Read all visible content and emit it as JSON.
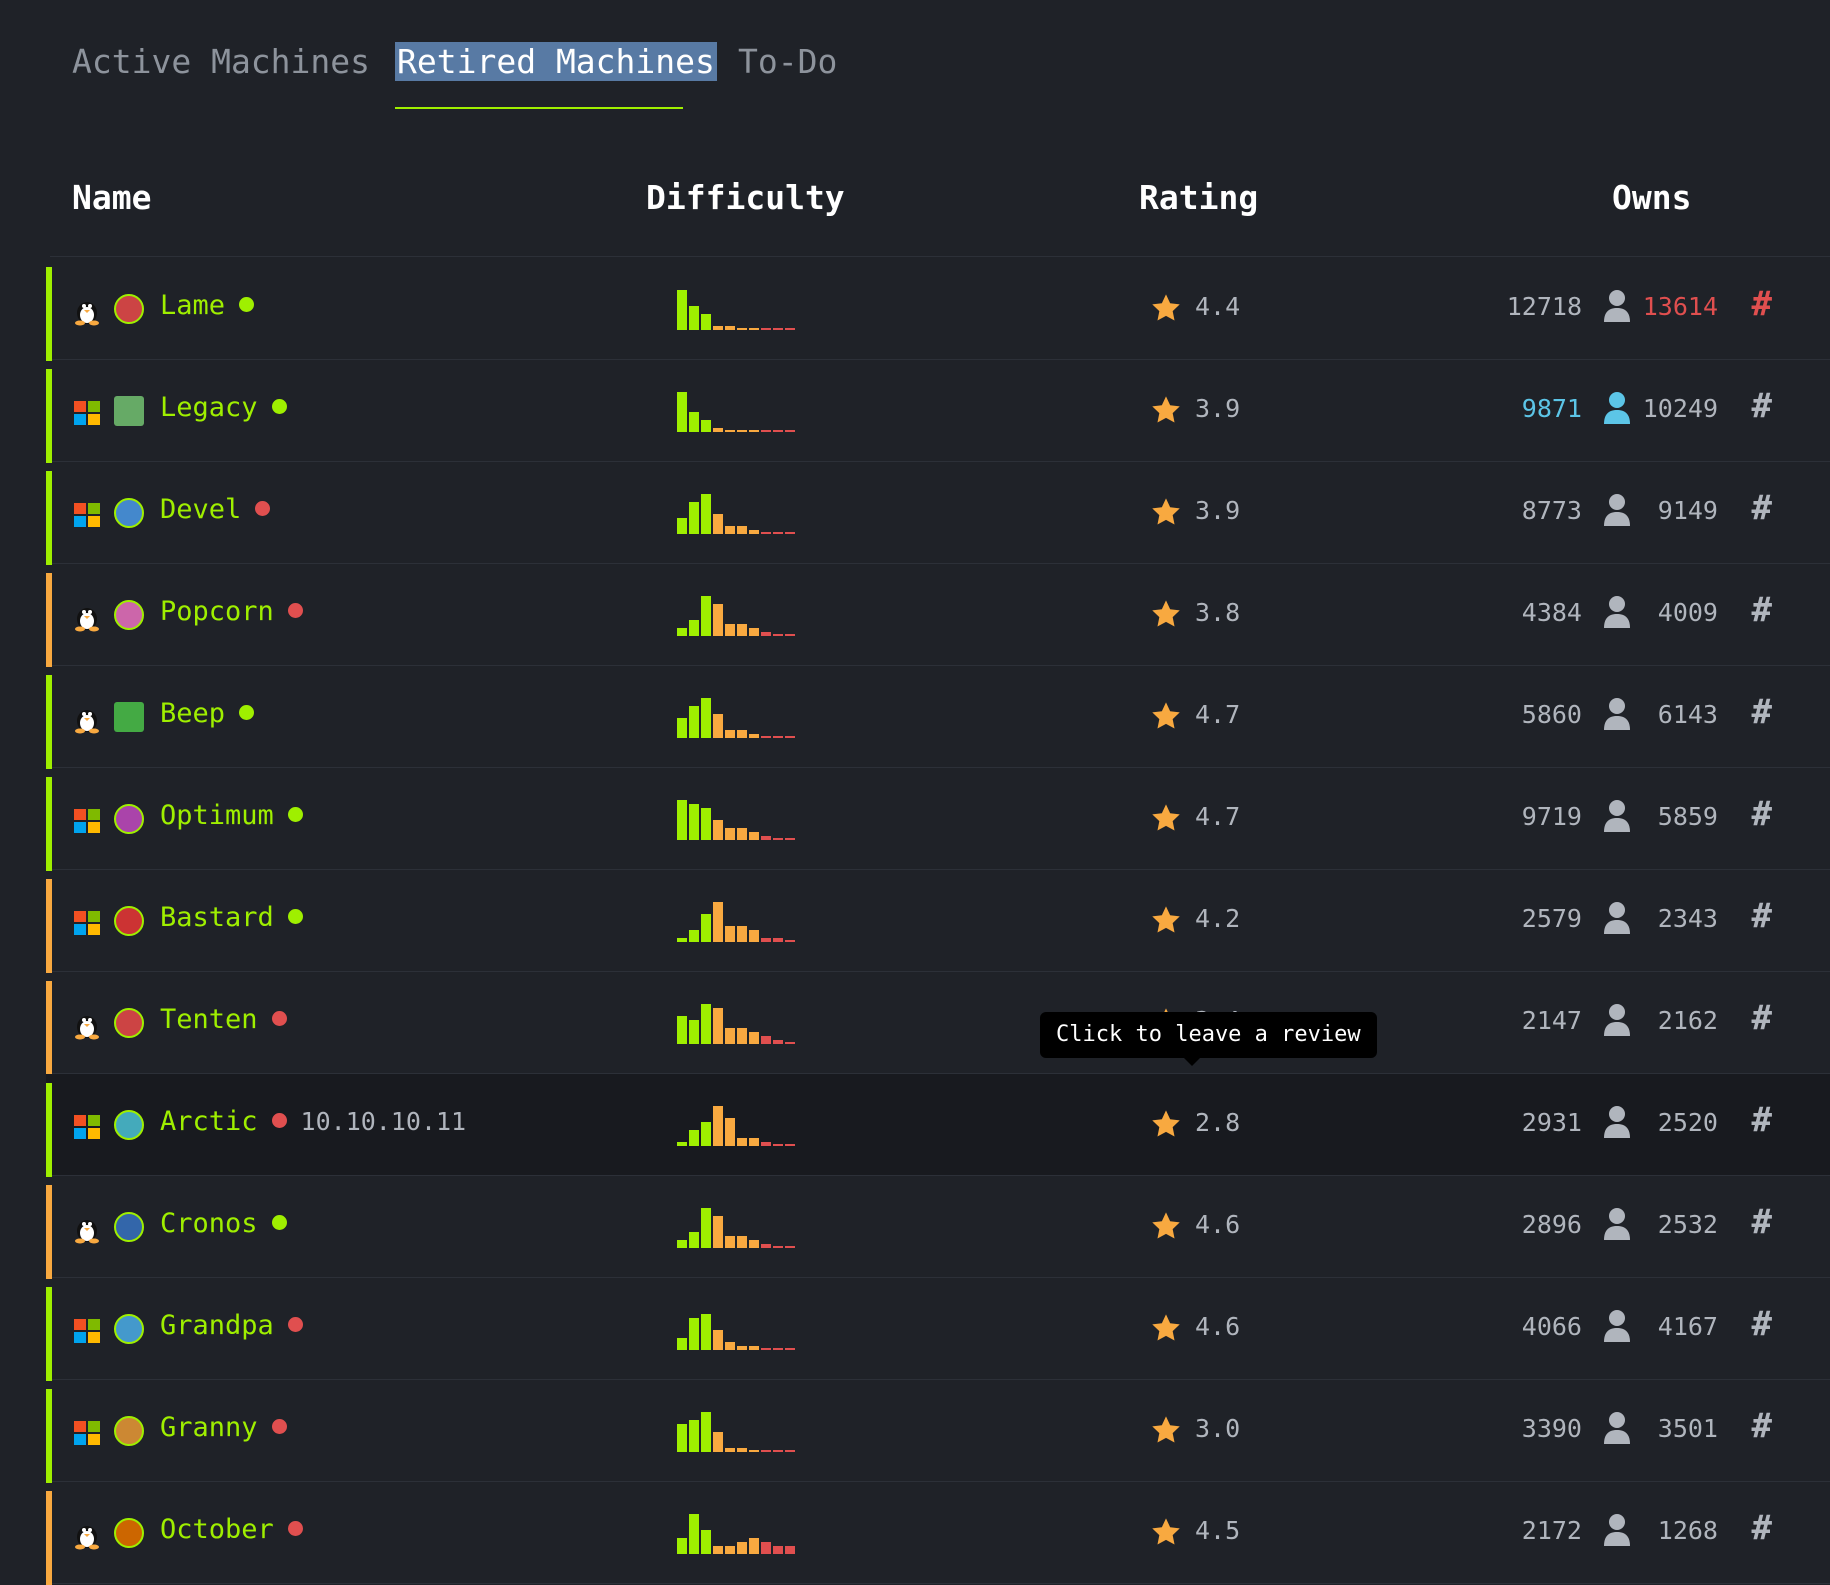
{
  "tabs": [
    {
      "label": "Active Machines",
      "active": false
    },
    {
      "label": "Retired Machines",
      "active": true
    },
    {
      "label": "To-Do",
      "active": false
    }
  ],
  "columns": {
    "name": "Name",
    "difficulty": "Difficulty",
    "rating": "Rating",
    "owns": "Owns"
  },
  "colors": {
    "green": "#9fef00",
    "orange": "#f8a940",
    "red": "#e04f4f",
    "blue": "#5cc5e7"
  },
  "machines": [
    {
      "name": "Lame",
      "os": "linux",
      "status": "online",
      "rating": "4.4",
      "user_owns": "12718",
      "root_owns": "13614",
      "root_highlight": "red",
      "difficulty_band": "easy",
      "difficulty_bars": [
        10,
        6,
        4,
        1,
        1,
        0,
        0,
        0,
        0,
        0
      ]
    },
    {
      "name": "Legacy",
      "os": "windows",
      "status": "online",
      "rating": "3.9",
      "user_owns": "9871",
      "root_owns": "10249",
      "user_highlight": "blue",
      "difficulty_band": "easy",
      "difficulty_bars": [
        10,
        5,
        3,
        1,
        0,
        0,
        0,
        0,
        0,
        0
      ]
    },
    {
      "name": "Devel",
      "os": "windows",
      "status": "offline",
      "rating": "3.9",
      "user_owns": "8773",
      "root_owns": "9149",
      "difficulty_band": "easy",
      "difficulty_bars": [
        4,
        8,
        10,
        5,
        2,
        2,
        1,
        0,
        0,
        0
      ]
    },
    {
      "name": "Popcorn",
      "os": "linux",
      "status": "offline",
      "rating": "3.8",
      "user_owns": "4384",
      "root_owns": "4009",
      "difficulty_band": "medium",
      "difficulty_bars": [
        2,
        4,
        10,
        8,
        3,
        3,
        2,
        1,
        0,
        0
      ]
    },
    {
      "name": "Beep",
      "os": "linux",
      "status": "online",
      "rating": "4.7",
      "user_owns": "5860",
      "root_owns": "6143",
      "difficulty_band": "easy",
      "difficulty_bars": [
        5,
        8,
        10,
        6,
        2,
        2,
        1,
        0,
        0,
        0
      ]
    },
    {
      "name": "Optimum",
      "os": "windows",
      "status": "online",
      "rating": "4.7",
      "user_owns": "9719",
      "root_owns": "5859",
      "difficulty_band": "easy",
      "difficulty_bars": [
        10,
        9,
        8,
        5,
        3,
        3,
        2,
        1,
        0,
        0
      ]
    },
    {
      "name": "Bastard",
      "os": "windows",
      "status": "online",
      "rating": "4.2",
      "user_owns": "2579",
      "root_owns": "2343",
      "difficulty_band": "medium",
      "difficulty_bars": [
        1,
        3,
        7,
        10,
        4,
        4,
        3,
        1,
        1,
        0
      ]
    },
    {
      "name": "Tenten",
      "os": "linux",
      "status": "offline",
      "rating": "3.4",
      "user_owns": "2147",
      "root_owns": "2162",
      "difficulty_band": "medium",
      "difficulty_bars": [
        7,
        6,
        10,
        9,
        4,
        4,
        3,
        2,
        1,
        0
      ]
    },
    {
      "name": "Arctic",
      "os": "windows",
      "status": "offline",
      "ip": "10.10.10.11",
      "rating": "2.8",
      "user_owns": "2931",
      "root_owns": "2520",
      "hover": true,
      "difficulty_band": "easy",
      "difficulty_bars": [
        1,
        4,
        6,
        10,
        7,
        2,
        2,
        1,
        0,
        0
      ]
    },
    {
      "name": "Cronos",
      "os": "linux",
      "status": "online",
      "rating": "4.6",
      "user_owns": "2896",
      "root_owns": "2532",
      "difficulty_band": "medium",
      "difficulty_bars": [
        2,
        4,
        10,
        8,
        3,
        3,
        2,
        1,
        0,
        0
      ]
    },
    {
      "name": "Grandpa",
      "os": "windows",
      "status": "offline",
      "rating": "4.6",
      "user_owns": "4066",
      "root_owns": "4167",
      "difficulty_band": "easy",
      "difficulty_bars": [
        3,
        8,
        9,
        5,
        2,
        1,
        1,
        0,
        0,
        0
      ]
    },
    {
      "name": "Granny",
      "os": "windows",
      "status": "offline",
      "rating": "3.0",
      "user_owns": "3390",
      "root_owns": "3501",
      "difficulty_band": "easy",
      "difficulty_bars": [
        7,
        8,
        10,
        5,
        1,
        1,
        0,
        0,
        0,
        0
      ]
    },
    {
      "name": "October",
      "os": "linux",
      "status": "offline",
      "rating": "4.5",
      "user_owns": "2172",
      "root_owns": "1268",
      "difficulty_band": "medium",
      "difficulty_bars": [
        4,
        10,
        6,
        2,
        2,
        3,
        4,
        3,
        2,
        2
      ]
    }
  ],
  "tooltip": {
    "text": "Click to leave a review"
  }
}
